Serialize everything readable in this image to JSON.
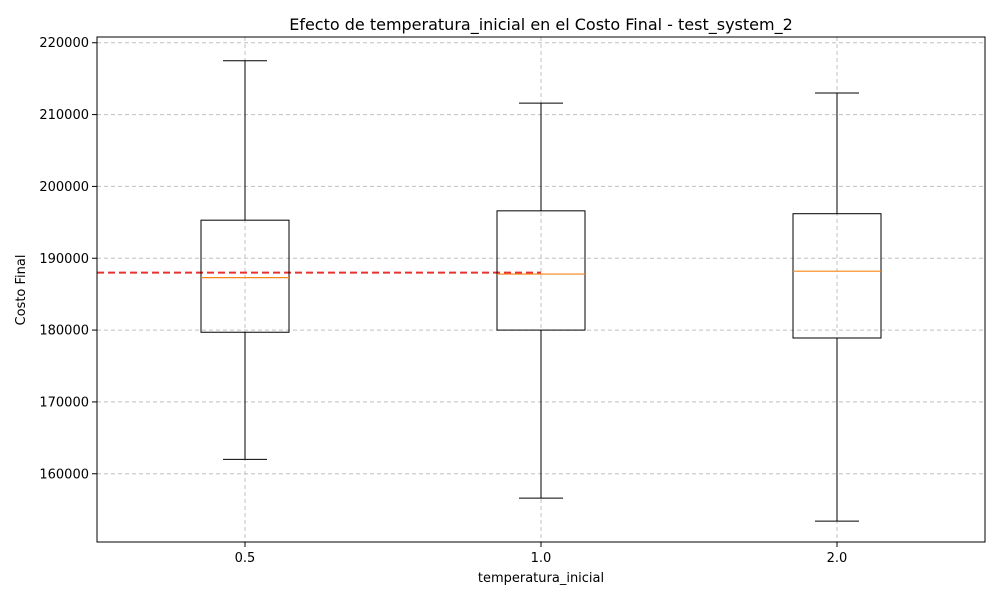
{
  "chart_data": {
    "type": "box",
    "title": "Efecto de temperatura_inicial en el Costo Final - test_system_2",
    "xlabel": "temperatura_inicial",
    "ylabel": "Costo Final",
    "categories": [
      "0.5",
      "1.0",
      "2.0"
    ],
    "boxes": [
      {
        "category": "0.5",
        "whisker_low": 162000,
        "q1": 179700,
        "median": 187300,
        "q3": 195300,
        "whisker_high": 217500
      },
      {
        "category": "1.0",
        "whisker_low": 156600,
        "q1": 180000,
        "median": 187800,
        "q3": 196600,
        "whisker_high": 211600
      },
      {
        "category": "2.0",
        "whisker_low": 153400,
        "q1": 178900,
        "median": 188200,
        "q3": 196200,
        "whisker_high": 213000
      }
    ],
    "reference_line": {
      "value": 188000,
      "color": "#e8312f",
      "style": "dashed",
      "x_range": [
        "start",
        "1.0"
      ]
    },
    "ylim": [
      150500,
      220800
    ],
    "yticks": [
      "160000",
      "170000",
      "180000",
      "190000",
      "200000",
      "210000",
      "220000"
    ],
    "ytick_values": [
      160000,
      170000,
      180000,
      190000,
      200000,
      210000,
      220000
    ],
    "grid": true,
    "colors": {
      "box": "#000000",
      "median": "#f58518",
      "grid": "#c0c0c0"
    }
  }
}
